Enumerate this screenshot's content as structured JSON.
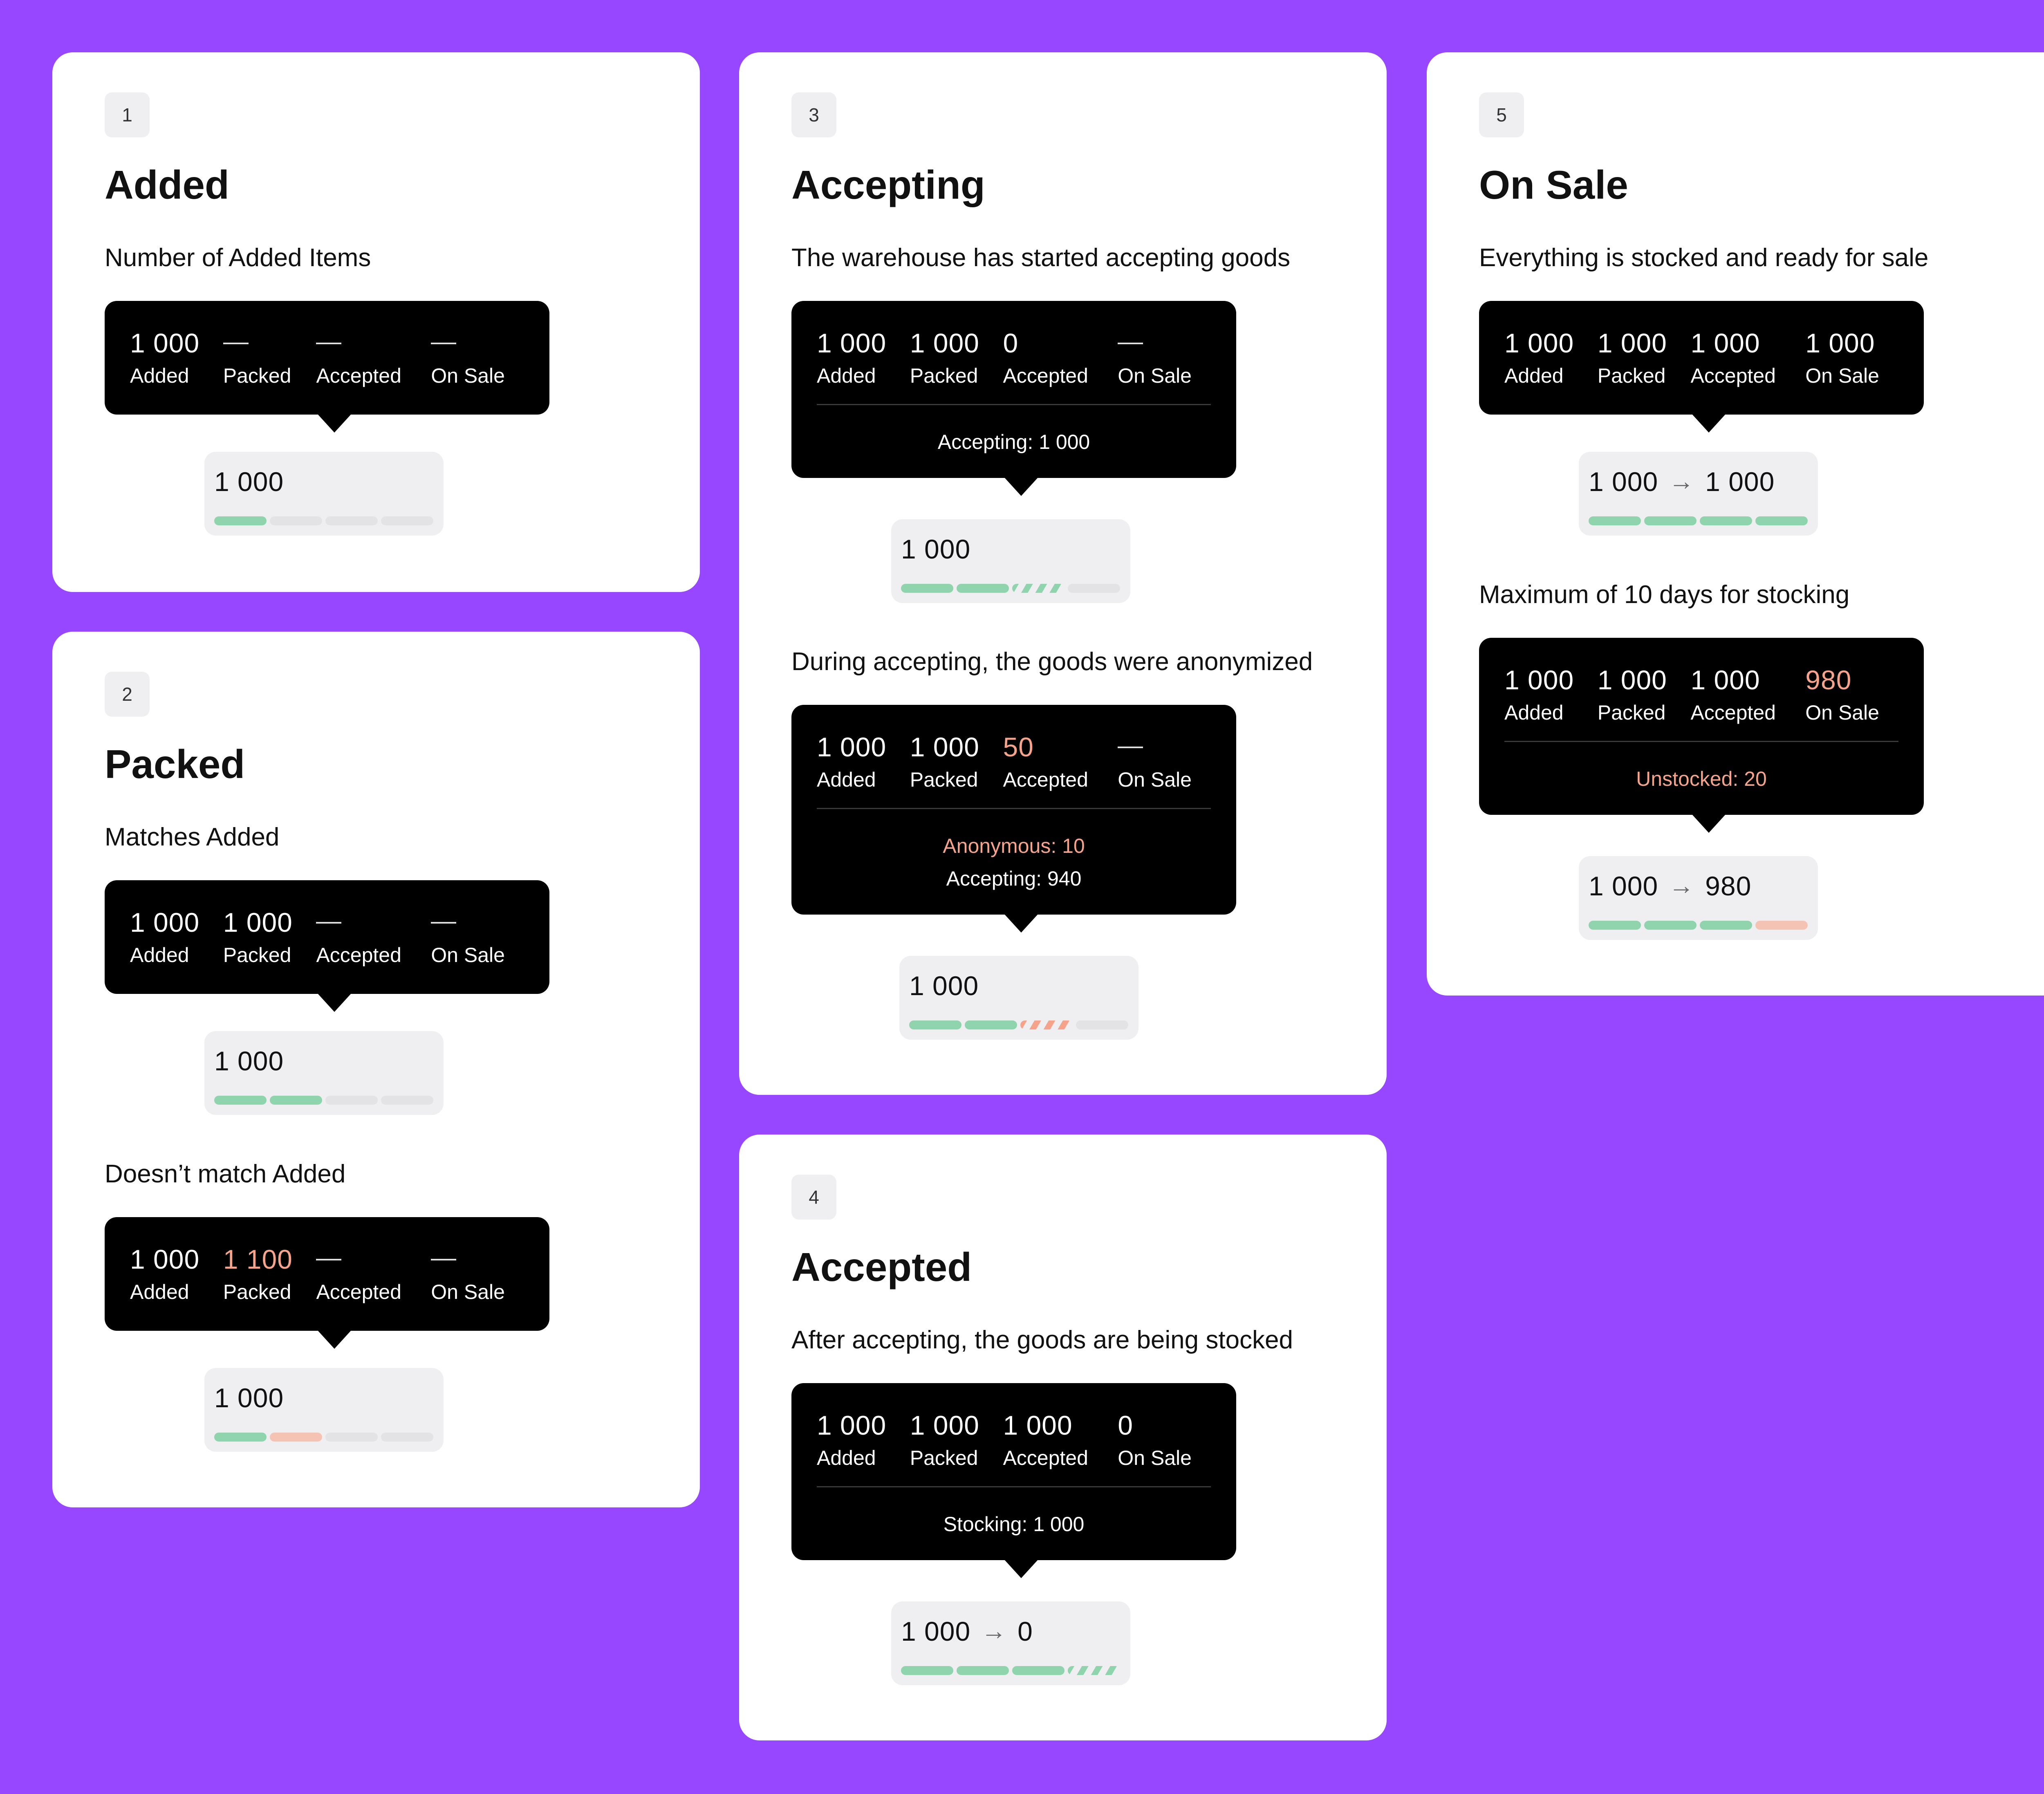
{
  "card1": {
    "badge": "1",
    "title": "Added",
    "caption": "Number of Added Items",
    "tooltip": {
      "values": [
        "1 000",
        "—",
        "—",
        "—"
      ],
      "labels": [
        "Added",
        "Packed",
        "Accepted",
        "On Sale"
      ]
    },
    "pill": {
      "value": "1 000",
      "segments": [
        "green",
        "empty",
        "empty",
        "empty"
      ]
    }
  },
  "card2": {
    "badge": "2",
    "title": "Packed",
    "caption_a": "Matches Added",
    "tooltip_a": {
      "values": [
        "1 000",
        "1 000",
        "—",
        "—"
      ],
      "labels": [
        "Added",
        "Packed",
        "Accepted",
        "On Sale"
      ]
    },
    "pill_a": {
      "value": "1 000",
      "segments": [
        "green",
        "green",
        "empty",
        "empty"
      ]
    },
    "caption_b": "Doesn’t match Added",
    "tooltip_b": {
      "values": [
        "1 000",
        "1 100",
        "—",
        "—"
      ],
      "labels": [
        "Added",
        "Packed",
        "Accepted",
        "On Sale"
      ]
    },
    "pill_b": {
      "value": "1 000",
      "segments": [
        "green",
        "pink",
        "empty",
        "empty"
      ]
    }
  },
  "card3": {
    "badge": "3",
    "title": "Accepting",
    "caption_a": "The warehouse has started accepting goods",
    "tooltip_a": {
      "values": [
        "1 000",
        "1 000",
        "0",
        "—"
      ],
      "labels": [
        "Added",
        "Packed",
        "Accepted",
        "On Sale"
      ],
      "note": "Accepting: 1 000"
    },
    "pill_a": {
      "value": "1 000",
      "segments": [
        "green",
        "green",
        "striped-green",
        "empty"
      ]
    },
    "caption_b": "During accepting, the goods were anonymized",
    "tooltip_b": {
      "values": [
        "1 000",
        "1 000",
        "50",
        "—"
      ],
      "labels": [
        "Added",
        "Packed",
        "Accepted",
        "On Sale"
      ],
      "note_warning": "Anonymous: 10",
      "note": "Accepting: 940"
    },
    "pill_b": {
      "value": "1 000",
      "segments": [
        "green",
        "green",
        "striped-orange",
        "empty"
      ]
    }
  },
  "card4": {
    "badge": "4",
    "title": "Accepted",
    "caption": "After accepting, the goods are being stocked",
    "tooltip": {
      "values": [
        "1 000",
        "1 000",
        "1 000",
        "0"
      ],
      "labels": [
        "Added",
        "Packed",
        "Accepted",
        "On Sale"
      ],
      "note": "Stocking: 1 000"
    },
    "pill": {
      "value_from": "1 000",
      "arrow": "→",
      "value_to": "0",
      "segments": [
        "green",
        "green",
        "green",
        "striped-green"
      ]
    }
  },
  "card5": {
    "badge": "5",
    "title": "On Sale",
    "caption_a": "Everything is stocked and ready for sale",
    "tooltip_a": {
      "values": [
        "1 000",
        "1 000",
        "1 000",
        "1 000"
      ],
      "labels": [
        "Added",
        "Packed",
        "Accepted",
        "On Sale"
      ]
    },
    "pill_a": {
      "value_from": "1 000",
      "arrow": "→",
      "value_to": "1 000",
      "segments": [
        "green",
        "green",
        "green",
        "green"
      ]
    },
    "caption_b": "Maximum of 10 days for stocking",
    "tooltip_b": {
      "values": [
        "1 000",
        "1 000",
        "1 000",
        "980"
      ],
      "labels": [
        "Added",
        "Packed",
        "Accepted",
        "On Sale"
      ],
      "note_warning": "Unstocked: 20"
    },
    "pill_b": {
      "value_from": "1 000",
      "arrow": "→",
      "value_to": "980",
      "segments": [
        "green",
        "green",
        "green",
        "pink"
      ]
    }
  },
  "colors": {
    "background": "#9747ff",
    "card": "#ffffff",
    "tooltip": "#000000",
    "success": "#8fd4ad",
    "warning": "#f5a38b",
    "warning_light": "#f5c3b4",
    "pill": "#efeff1"
  }
}
